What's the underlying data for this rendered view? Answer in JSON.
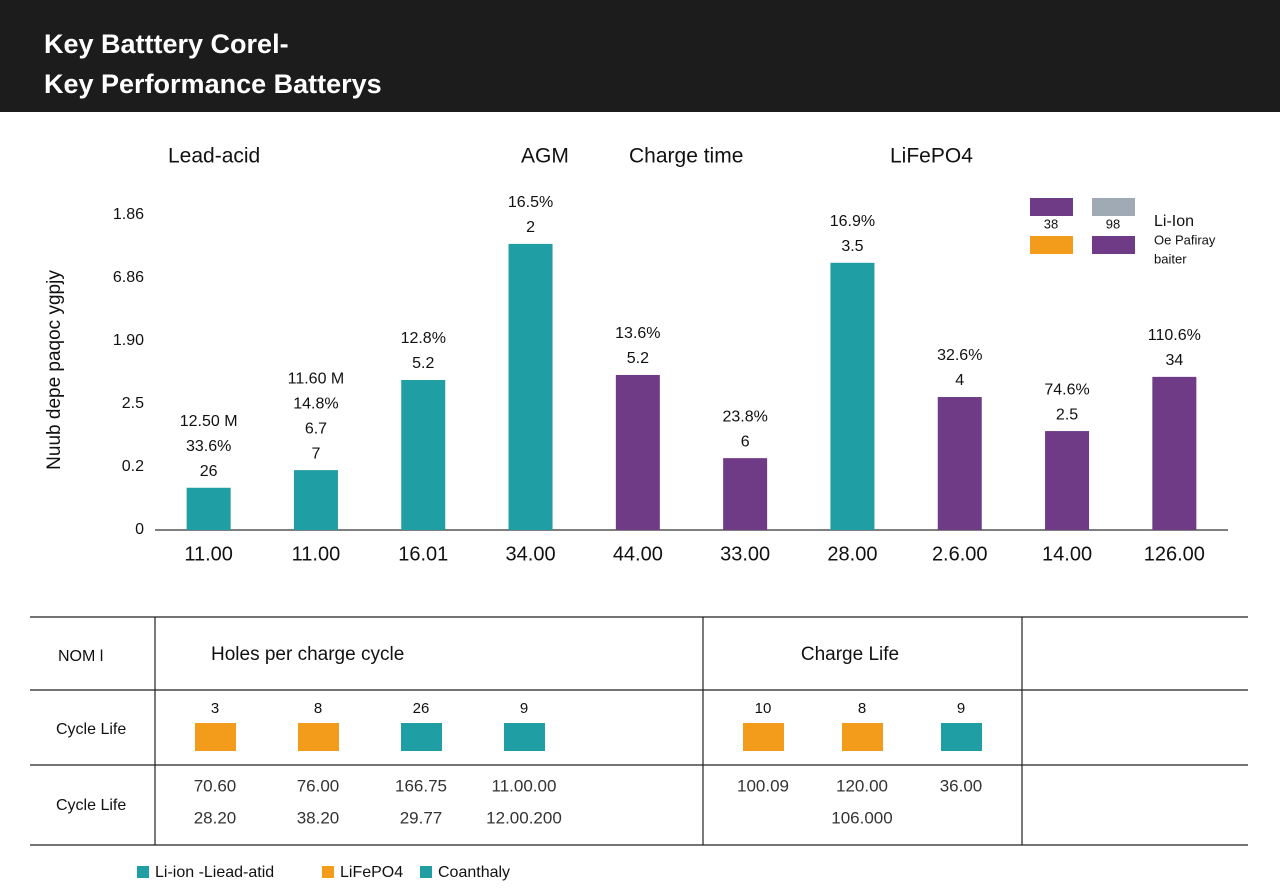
{
  "header": {
    "title_lines": [
      "Key Batttery Corel-",
      "Key Performance Batterys"
    ]
  },
  "chart_data": {
    "type": "bar",
    "group_labels": [
      "Lead-acid",
      "AGM",
      "Charge time",
      "LiFePO4"
    ],
    "y_label": "Nuub depe paqoc ygpjy",
    "categories": [
      "11.00",
      "11.00",
      "16.01",
      "34.00",
      "44.00",
      "33.00",
      "28.00",
      "2.6.00",
      "14.00",
      "126.00"
    ],
    "values": [
      0.67,
      0.95,
      2.38,
      4.54,
      2.46,
      1.14,
      4.24,
      2.11,
      1.57,
      2.43
    ],
    "colors": [
      "#1f9ea3",
      "#1f9ea3",
      "#1f9ea3",
      "#1f9ea3",
      "#6f3a86",
      "#6f3a86",
      "#1f9ea3",
      "#6f3a86",
      "#6f3a86",
      "#6f3a86"
    ],
    "annotations": [
      [
        "12.50 M",
        "33.6%",
        "26"
      ],
      [
        "11.60 M",
        "14.8%",
        "6.7",
        "7"
      ],
      [
        "12.8%",
        "5.2"
      ],
      [
        "16.5%",
        "2"
      ],
      [
        "13.6%",
        "5.2"
      ],
      [
        "23.8%",
        "6"
      ],
      [
        "16.9%",
        "3.5"
      ],
      [
        "32.6%",
        "4"
      ],
      [
        "74.6%",
        "2.5"
      ],
      [
        "110.6%",
        "34"
      ]
    ],
    "ylim": [
      0,
      5.3
    ],
    "yticks": [
      0,
      {
        "value": 1,
        "label": "0.2"
      },
      {
        "value": 2,
        "label": "2.5"
      },
      {
        "value": 3,
        "label": "1.90"
      },
      {
        "value": 4,
        "label": "6.86"
      },
      {
        "value": 5,
        "label": "1.86"
      }
    ],
    "grid": false
  },
  "legend": {
    "swatches": [
      {
        "label": "38",
        "color": "#6f3a86"
      },
      {
        "label": "98",
        "color": "#a0aab4"
      }
    ],
    "extra_colors": [
      "#f39c1c",
      "#6f3a86"
    ],
    "texts": [
      "Li-Ion",
      "Oe Pafiray",
      "baiter"
    ]
  },
  "table": {
    "columns": [
      "NOM l",
      "Holes per charge cycle",
      "Charge Life"
    ],
    "swatch_row": {
      "label": "Cycle Life",
      "groups": [
        [
          {
            "label": "3",
            "color": "#f39c1c"
          },
          {
            "label": "8",
            "color": "#f39c1c"
          },
          {
            "label": "26",
            "color": "#1f9ea3"
          },
          {
            "label": "9",
            "color": "#1f9ea3"
          }
        ],
        [
          {
            "label": "10",
            "color": "#f39c1c"
          },
          {
            "label": "8",
            "color": "#f39c1c"
          },
          {
            "label": "9",
            "color": "#1f9ea3"
          }
        ]
      ]
    },
    "value_row": {
      "label": "Cycle Life",
      "groups": [
        [
          [
            "70.60",
            "28.20"
          ],
          [
            "76.00",
            "38.20"
          ],
          [
            "166.75",
            "29.77"
          ],
          [
            "11.00.00",
            "12.00.200"
          ]
        ],
        [
          [
            "100.09"
          ],
          [
            "120.00",
            "106.000"
          ],
          [
            "36.00"
          ]
        ]
      ]
    }
  },
  "bottom_legend": [
    {
      "label": "Li-ion -Liead-atid",
      "color": "#1f9ea3"
    },
    {
      "label": "LiFePO4",
      "color": "#f39c1c"
    },
    {
      "label": "Coanthaly",
      "color": "#1f9ea3"
    }
  ]
}
